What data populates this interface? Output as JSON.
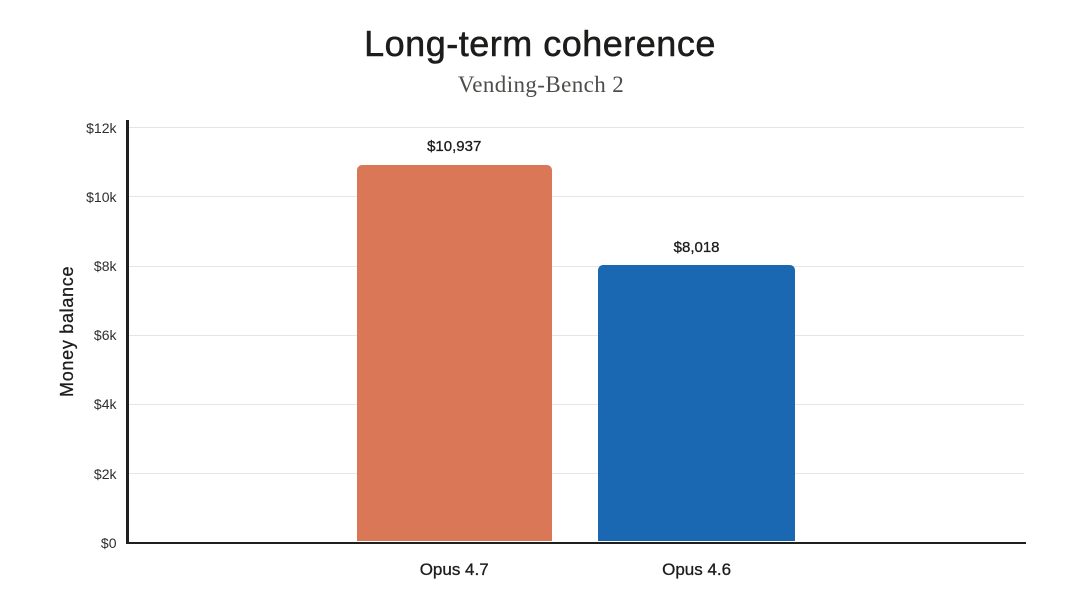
{
  "chart": {
    "title": "Long-term coherence",
    "subtitle": "Vending-Bench 2"
  },
  "chart_data": {
    "type": "bar",
    "title": "Long-term coherence",
    "subtitle": "Vending-Bench 2",
    "categories": [
      "Opus 4.7",
      "Opus 4.6"
    ],
    "values": [
      10937,
      8018
    ],
    "value_labels": [
      "$10,937",
      "$8,018"
    ],
    "bar_colors": [
      "#d97757",
      "#1a68b2"
    ],
    "xlabel": "",
    "ylabel": "Money balance",
    "ylim": [
      0,
      12000
    ],
    "yticks": [
      0,
      2000,
      4000,
      6000,
      8000,
      10000,
      12000
    ],
    "ytick_labels": [
      "$0",
      "$2k",
      "$4k",
      "$6k",
      "$8k",
      "$10k",
      "$12k"
    ],
    "grid": "horizontal-gridlines",
    "legend_position": "none",
    "background_color": "#ffffff",
    "gridline_color": "#e8e6e3",
    "axis_color": "#1f1f1e"
  }
}
